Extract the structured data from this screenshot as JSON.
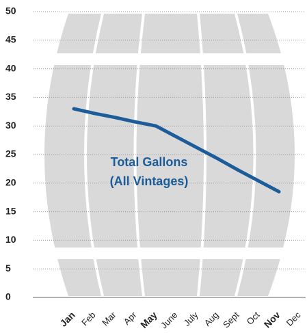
{
  "chart_data": {
    "type": "line",
    "categories": [
      "Jan",
      "Feb",
      "Mar",
      "Apr",
      "May",
      "June",
      "July",
      "Aug",
      "Sept",
      "Oct",
      "Nov",
      "Dec"
    ],
    "series": [
      {
        "name": "Total Gallons (All Vintages)",
        "color": "#1b5c99",
        "values": [
          33,
          32.2,
          31.5,
          30.7,
          30,
          28.1,
          26.2,
          24.3,
          22.3,
          20.4,
          18.5,
          null
        ]
      }
    ],
    "annotation": [
      "Total Gallons",
      "(All Vintages)"
    ],
    "bold_category_indices": [
      0,
      4,
      10
    ],
    "ylim": [
      0,
      50
    ],
    "yticks": [
      0,
      5,
      10,
      15,
      20,
      25,
      30,
      35,
      40,
      45,
      50
    ],
    "grid": true
  }
}
